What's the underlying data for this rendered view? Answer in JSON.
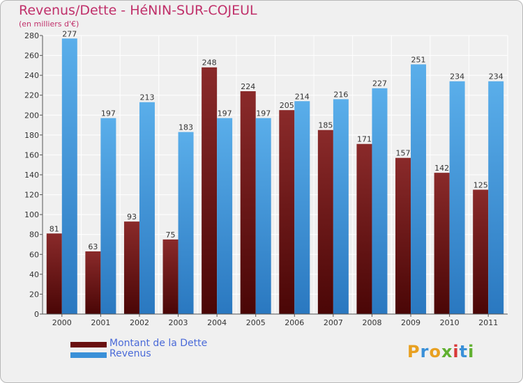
{
  "title": "Revenus/Dette - HéNIN-SUR-COJEUL",
  "subtitle": "(en milliers d'€)",
  "chart_data": {
    "type": "bar",
    "categories": [
      "2000",
      "2001",
      "2002",
      "2003",
      "2004",
      "2005",
      "2006",
      "2007",
      "2008",
      "2009",
      "2010",
      "2011"
    ],
    "series": [
      {
        "name": "Montant de la Dette",
        "color": "#7a1a1a",
        "values": [
          81,
          63,
          93,
          75,
          248,
          224,
          205,
          185,
          171,
          157,
          142,
          125
        ]
      },
      {
        "name": "Revenus",
        "color": "#4aa0e0",
        "values": [
          277,
          197,
          213,
          183,
          197,
          197,
          214,
          216,
          227,
          251,
          234,
          234
        ]
      }
    ],
    "ylim": [
      0,
      280
    ],
    "yticks": [
      0,
      20,
      40,
      60,
      80,
      100,
      120,
      140,
      160,
      180,
      200,
      220,
      240,
      260,
      280
    ],
    "grid": true,
    "legend_position": "bottom-left"
  },
  "legend": {
    "items": [
      {
        "label": "Montant de la Dette",
        "color": "#6a1010"
      },
      {
        "label": "Revenus",
        "color": "#3a90d8"
      }
    ]
  },
  "logo": {
    "text": "Proxiti"
  }
}
